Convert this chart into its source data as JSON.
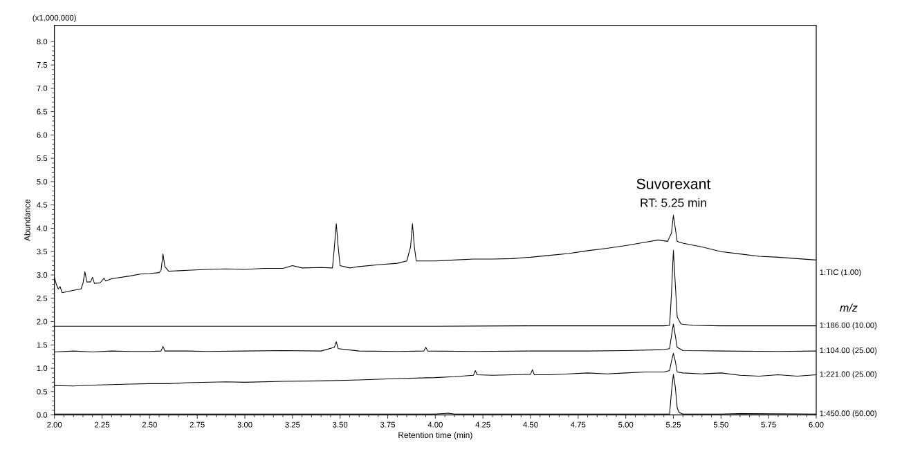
{
  "chart_data": {
    "type": "line",
    "xlabel": "Retention time (min)",
    "ylabel": "Abundance",
    "annotations": [
      "(x1,000,000)",
      "Suvorexant",
      "RT: 5.25 min",
      "m/z"
    ],
    "xlim": [
      2.0,
      6.0
    ],
    "ylim": [
      0,
      8.35
    ],
    "xticks": [
      {
        "value": 2.0,
        "label": "2.00"
      },
      {
        "value": 2.25,
        "label": "2.25"
      },
      {
        "value": 2.5,
        "label": "2.50"
      },
      {
        "value": 2.75,
        "label": "2.75"
      },
      {
        "value": 3.0,
        "label": "3.00"
      },
      {
        "value": 3.25,
        "label": "3.25"
      },
      {
        "value": 3.5,
        "label": "3.50"
      },
      {
        "value": 3.75,
        "label": "3.75"
      },
      {
        "value": 4.0,
        "label": "4.00"
      },
      {
        "value": 4.25,
        "label": "4.25"
      },
      {
        "value": 4.5,
        "label": "4.50"
      },
      {
        "value": 4.75,
        "label": "4.75"
      },
      {
        "value": 5.0,
        "label": "5.00"
      },
      {
        "value": 5.25,
        "label": "5.25"
      },
      {
        "value": 5.5,
        "label": "5.50"
      },
      {
        "value": 5.75,
        "label": "5.75"
      },
      {
        "value": 6.0,
        "label": "6.00"
      }
    ],
    "yticks": [
      {
        "value": 0,
        "label": "0.0"
      },
      {
        "value": 0.5,
        "label": "0.5"
      },
      {
        "value": 1.0,
        "label": "1.0"
      },
      {
        "value": 1.5,
        "label": "1.5"
      },
      {
        "value": 2.0,
        "label": "2.0"
      },
      {
        "value": 2.5,
        "label": "2.5"
      },
      {
        "value": 3.0,
        "label": "3.0"
      },
      {
        "value": 3.5,
        "label": "3.5"
      },
      {
        "value": 4.0,
        "label": "4.0"
      },
      {
        "value": 4.5,
        "label": "4.5"
      },
      {
        "value": 5.0,
        "label": "5.0"
      },
      {
        "value": 5.5,
        "label": "5.5"
      },
      {
        "value": 6.0,
        "label": "6.0"
      },
      {
        "value": 6.5,
        "label": "6.5"
      },
      {
        "value": 7.0,
        "label": "7.0"
      },
      {
        "value": 7.5,
        "label": "7.5"
      },
      {
        "value": 8.0,
        "label": "8.0"
      }
    ],
    "series": [
      {
        "name": "1:TIC (1.00)",
        "color": "#000000",
        "x": [
          2.0,
          2.01,
          2.02,
          2.03,
          2.04,
          2.1,
          2.14,
          2.15,
          2.16,
          2.17,
          2.19,
          2.2,
          2.21,
          2.24,
          2.26,
          2.27,
          2.3,
          2.35,
          2.4,
          2.45,
          2.5,
          2.55,
          2.56,
          2.57,
          2.58,
          2.6,
          2.7,
          2.8,
          2.9,
          3.0,
          3.1,
          3.2,
          3.25,
          3.3,
          3.4,
          3.46,
          3.47,
          3.48,
          3.49,
          3.5,
          3.55,
          3.6,
          3.7,
          3.8,
          3.85,
          3.87,
          3.88,
          3.89,
          3.9,
          4.0,
          4.1,
          4.2,
          4.3,
          4.4,
          4.5,
          4.6,
          4.7,
          4.8,
          4.9,
          5.0,
          5.1,
          5.17,
          5.22,
          5.24,
          5.25,
          5.26,
          5.27,
          5.3,
          5.4,
          5.5,
          5.6,
          5.7,
          5.8,
          5.9,
          6.0
        ],
        "values": [
          2.95,
          2.8,
          2.7,
          2.75,
          2.62,
          2.67,
          2.7,
          2.82,
          3.07,
          2.85,
          2.85,
          2.95,
          2.82,
          2.83,
          2.93,
          2.87,
          2.92,
          2.95,
          2.98,
          3.02,
          3.03,
          3.05,
          3.1,
          3.45,
          3.18,
          3.08,
          3.1,
          3.12,
          3.13,
          3.12,
          3.14,
          3.14,
          3.2,
          3.15,
          3.16,
          3.15,
          3.6,
          4.1,
          3.6,
          3.2,
          3.15,
          3.18,
          3.22,
          3.25,
          3.3,
          3.6,
          4.1,
          3.6,
          3.3,
          3.3,
          3.32,
          3.34,
          3.34,
          3.35,
          3.38,
          3.42,
          3.46,
          3.52,
          3.57,
          3.63,
          3.7,
          3.75,
          3.72,
          3.9,
          4.28,
          4.0,
          3.72,
          3.68,
          3.6,
          3.5,
          3.45,
          3.4,
          3.38,
          3.35,
          3.32
        ]
      },
      {
        "name": "1:186.00 (10.00)",
        "color": "#000000",
        "x": [
          2.0,
          2.5,
          3.0,
          3.5,
          4.0,
          4.5,
          5.0,
          5.2,
          5.23,
          5.24,
          5.25,
          5.26,
          5.27,
          5.29,
          5.35,
          5.5,
          6.0
        ],
        "values": [
          1.9,
          1.9,
          1.9,
          1.9,
          1.9,
          1.91,
          1.91,
          1.91,
          1.92,
          2.6,
          3.53,
          2.8,
          2.1,
          1.95,
          1.92,
          1.91,
          1.91
        ]
      },
      {
        "name": "1:104.00 (25.00)",
        "color": "#000000",
        "x": [
          2.0,
          2.1,
          2.2,
          2.3,
          2.4,
          2.5,
          2.56,
          2.57,
          2.58,
          2.7,
          2.8,
          3.0,
          3.2,
          3.4,
          3.47,
          3.48,
          3.49,
          3.6,
          3.8,
          3.94,
          3.95,
          3.96,
          4.2,
          4.5,
          4.8,
          5.0,
          5.2,
          5.23,
          5.24,
          5.25,
          5.26,
          5.27,
          5.3,
          5.5,
          5.8,
          6.0
        ],
        "values": [
          1.35,
          1.37,
          1.35,
          1.37,
          1.36,
          1.36,
          1.37,
          1.47,
          1.37,
          1.37,
          1.36,
          1.37,
          1.38,
          1.37,
          1.45,
          1.57,
          1.42,
          1.37,
          1.36,
          1.37,
          1.45,
          1.37,
          1.36,
          1.37,
          1.37,
          1.38,
          1.4,
          1.42,
          1.7,
          1.95,
          1.7,
          1.45,
          1.38,
          1.37,
          1.36,
          1.37
        ]
      },
      {
        "name": "1:221.00 (25.00)",
        "color": "#000000",
        "x": [
          2.0,
          2.1,
          2.2,
          2.3,
          2.4,
          2.5,
          2.6,
          2.7,
          2.8,
          2.9,
          3.0,
          3.2,
          3.4,
          3.6,
          3.8,
          4.0,
          4.1,
          4.2,
          4.21,
          4.22,
          4.3,
          4.4,
          4.5,
          4.51,
          4.52,
          4.6,
          4.7,
          4.8,
          4.9,
          5.0,
          5.1,
          5.2,
          5.23,
          5.24,
          5.25,
          5.26,
          5.27,
          5.3,
          5.4,
          5.5,
          5.6,
          5.7,
          5.8,
          5.9,
          6.0
        ],
        "values": [
          0.63,
          0.62,
          0.64,
          0.65,
          0.66,
          0.67,
          0.67,
          0.69,
          0.7,
          0.71,
          0.7,
          0.72,
          0.73,
          0.75,
          0.78,
          0.8,
          0.82,
          0.85,
          0.95,
          0.86,
          0.85,
          0.86,
          0.87,
          0.97,
          0.86,
          0.86,
          0.88,
          0.9,
          0.88,
          0.9,
          0.92,
          0.92,
          0.95,
          1.15,
          1.32,
          1.15,
          0.92,
          0.9,
          0.88,
          0.9,
          0.85,
          0.83,
          0.86,
          0.83,
          0.86
        ]
      },
      {
        "name": "1:450.00 (50.00)",
        "color": "#000000",
        "x": [
          2.0,
          2.5,
          3.0,
          3.5,
          4.0,
          4.07,
          4.1,
          4.5,
          5.0,
          5.23,
          5.24,
          5.25,
          5.26,
          5.27,
          5.28,
          5.3,
          5.5,
          5.6,
          6.0
        ],
        "values": [
          0.02,
          0.02,
          0.02,
          0.02,
          0.02,
          0.04,
          0.02,
          0.02,
          0.02,
          0.02,
          0.5,
          0.87,
          0.6,
          0.15,
          0.05,
          0.02,
          0.02,
          0.03,
          0.02
        ]
      }
    ]
  }
}
